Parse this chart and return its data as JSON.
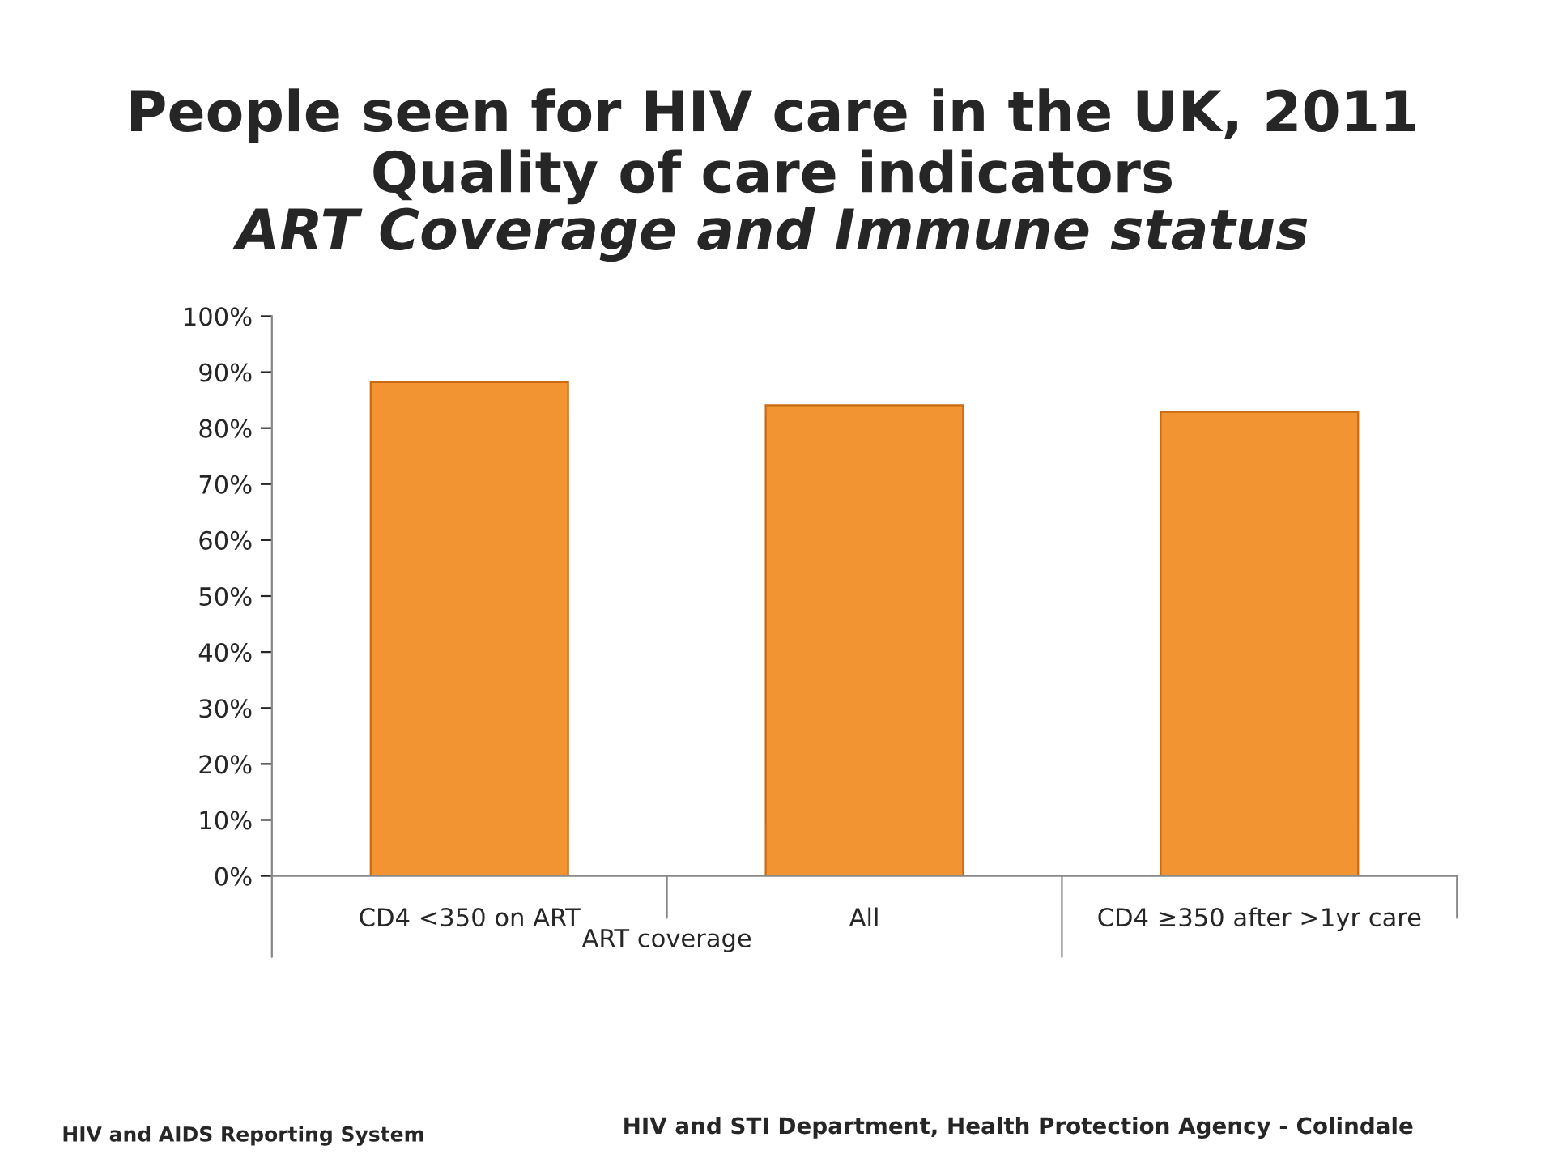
{
  "chart_data": {
    "type": "bar",
    "title": "People seen for HIV care in the UK, 2011\nQuality of care indicators",
    "subtitle": "ART Coverage and Immune status",
    "categories": [
      "CD4 <350 on ART",
      "All",
      "CD4 ≥350 after >1yr care"
    ],
    "values": [
      0.882,
      0.841,
      0.829
    ],
    "color": "#f39433",
    "ylim": [
      0,
      1
    ],
    "yticks": [
      {
        "value": 0,
        "label": "0%"
      },
      {
        "value": 0.1,
        "label": "10%"
      },
      {
        "value": 0.2,
        "label": "20%"
      },
      {
        "value": 0.3,
        "label": "30%"
      },
      {
        "value": 0.4,
        "label": "40%"
      },
      {
        "value": 0.5,
        "label": "50%"
      },
      {
        "value": 0.6,
        "label": "60%"
      },
      {
        "value": 0.7,
        "label": "70%"
      },
      {
        "value": 0.8,
        "label": "80%"
      },
      {
        "value": 0.9,
        "label": "90%"
      },
      {
        "value": 1,
        "label": "100%"
      }
    ],
    "grid": false,
    "legend": false,
    "annotations": [
      "ART coverage",
      "HIV and AIDS Reporting System",
      "HIV and STI Department, Health Protection Agency - Colindale"
    ]
  }
}
